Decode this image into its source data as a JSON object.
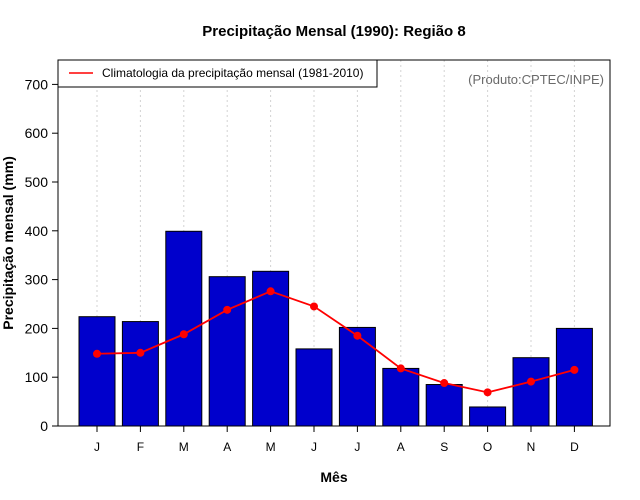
{
  "chart_data": {
    "type": "bar",
    "title": "Precipitação Mensal (1990): Região 8",
    "xlabel": "Mês",
    "ylabel": "Precipitação mensal (mm)",
    "ylim": [
      0,
      750
    ],
    "yticks": [
      0,
      100,
      200,
      300,
      400,
      500,
      600,
      700
    ],
    "categories": [
      "J",
      "F",
      "M",
      "A",
      "M",
      "J",
      "J",
      "A",
      "S",
      "O",
      "N",
      "D"
    ],
    "series": [
      {
        "name": "Precipitação mensal (1990)",
        "type": "bar",
        "color": "#0000cc",
        "values": [
          224,
          214,
          399,
          306,
          317,
          158,
          202,
          118,
          85,
          39,
          140,
          200
        ]
      },
      {
        "name": "Climatologia da precipitação mensal (1981-2010)",
        "type": "line",
        "color": "#ff0000",
        "values": [
          148,
          150,
          188,
          238,
          276,
          245,
          185,
          118,
          88,
          69,
          91,
          115
        ]
      }
    ],
    "legend_label": "Climatologia da precipitação mensal (1981-2010)",
    "legend_position": "top-left",
    "annotation": "(Produto:CPTEC/INPE)",
    "grid": "vertical dotted"
  }
}
